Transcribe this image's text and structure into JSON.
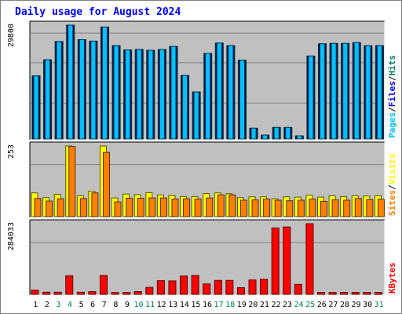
{
  "chart_data": [
    {
      "type": "bar",
      "title": "Daily usage for August 2024",
      "panel": "hits-files-pages",
      "categories": [
        "1",
        "2",
        "3",
        "4",
        "5",
        "6",
        "7",
        "8",
        "9",
        "10",
        "11",
        "12",
        "13",
        "14",
        "15",
        "16",
        "17",
        "18",
        "19",
        "20",
        "21",
        "22",
        "23",
        "24",
        "25",
        "26",
        "27",
        "28",
        "29",
        "30",
        "31"
      ],
      "weekend_days": [
        "3",
        "4",
        "10",
        "11",
        "17",
        "18",
        "24",
        "25",
        "31"
      ],
      "ymax_label": "29800",
      "ylim": [
        0,
        29800
      ],
      "series": [
        {
          "name": "Hits",
          "color": "#00805c",
          "values": [
            16500,
            20700,
            25500,
            29800,
            26000,
            25600,
            29300,
            24400,
            23300,
            23400,
            23200,
            23400,
            24200,
            16600,
            12300,
            22400,
            25100,
            24400,
            20600,
            2800,
            1000,
            3000,
            3000,
            800,
            21700,
            24900,
            25000,
            25000,
            25200,
            24400,
            24400
          ]
        },
        {
          "name": "Files",
          "color": "#0000ff",
          "values": [
            16500,
            20700,
            25500,
            29800,
            26000,
            25600,
            29300,
            24400,
            23300,
            23400,
            23200,
            23400,
            24200,
            16600,
            12300,
            22400,
            25100,
            24400,
            20600,
            2800,
            1000,
            3000,
            3000,
            800,
            21700,
            24900,
            25000,
            25000,
            25200,
            24400,
            24400
          ]
        },
        {
          "name": "Pages",
          "color": "#00c0ff",
          "values": [
            16500,
            20700,
            25500,
            29800,
            26000,
            25600,
            29300,
            24400,
            23300,
            23400,
            23200,
            23400,
            24200,
            16600,
            12300,
            22400,
            25100,
            24400,
            20600,
            2800,
            1000,
            3000,
            3000,
            800,
            21700,
            24900,
            25000,
            25000,
            25200,
            24400,
            24400
          ]
        }
      ]
    },
    {
      "type": "bar",
      "panel": "visits-sites",
      "categories": [
        "1",
        "2",
        "3",
        "4",
        "5",
        "6",
        "7",
        "8",
        "9",
        "10",
        "11",
        "12",
        "13",
        "14",
        "15",
        "16",
        "17",
        "18",
        "19",
        "20",
        "21",
        "22",
        "23",
        "24",
        "25",
        "26",
        "27",
        "28",
        "29",
        "30",
        "31"
      ],
      "ymax_label": "253",
      "ylim": [
        0,
        253
      ],
      "series": [
        {
          "name": "Visits",
          "color": "#ffff00",
          "values": [
            85,
            68,
            80,
            253,
            75,
            91,
            253,
            67,
            81,
            79,
            86,
            78,
            76,
            72,
            72,
            83,
            85,
            82,
            68,
            71,
            71,
            64,
            71,
            70,
            77,
            70,
            75,
            72,
            75,
            74,
            75
          ]
        },
        {
          "name": "Sites",
          "color": "#ff8000",
          "values": [
            65,
            56,
            64,
            251,
            65,
            85,
            230,
            53,
            66,
            66,
            67,
            67,
            63,
            64,
            63,
            67,
            78,
            78,
            59,
            60,
            63,
            59,
            57,
            59,
            63,
            55,
            60,
            59,
            65,
            61,
            62
          ]
        }
      ]
    },
    {
      "type": "bar",
      "panel": "kbytes",
      "categories": [
        "1",
        "2",
        "3",
        "4",
        "5",
        "6",
        "7",
        "8",
        "9",
        "10",
        "11",
        "12",
        "13",
        "14",
        "15",
        "16",
        "17",
        "18",
        "19",
        "20",
        "21",
        "22",
        "23",
        "24",
        "25",
        "26",
        "27",
        "28",
        "29",
        "30",
        "31"
      ],
      "ymax_label": "284033",
      "ylim": [
        0,
        284033
      ],
      "series": [
        {
          "name": "KBytes",
          "color": "#ff0000",
          "values": [
            17000,
            8500,
            8500,
            75000,
            8500,
            11000,
            76000,
            7500,
            7500,
            11000,
            28000,
            55000,
            54000,
            74000,
            76000,
            42000,
            56000,
            56000,
            27000,
            58000,
            61000,
            267000,
            271000,
            40000,
            284033,
            7500,
            7500,
            7500,
            7500,
            7500,
            7500
          ]
        }
      ]
    }
  ],
  "side_labels": {
    "top": [
      {
        "text": "Pages",
        "color": "#00c0ff"
      },
      {
        "text": "/",
        "color": "#000000"
      },
      {
        "text": "Files",
        "color": "#0000ff"
      },
      {
        "text": "/",
        "color": "#000000"
      },
      {
        "text": "Hits",
        "color": "#00805c"
      }
    ],
    "middle": [
      {
        "text": "Sites",
        "color": "#ff8000"
      },
      {
        "text": "/",
        "color": "#000000"
      },
      {
        "text": "Visits",
        "color": "#ffff00"
      }
    ],
    "bottom": [
      {
        "text": "KBytes",
        "color": "#ff0000"
      }
    ]
  },
  "colors": {
    "title": "#0000ff",
    "panel_bg": "#c0c0c0",
    "gridline": "#808080",
    "weekday_label": "#000000",
    "weekend_label": "#00805c"
  }
}
